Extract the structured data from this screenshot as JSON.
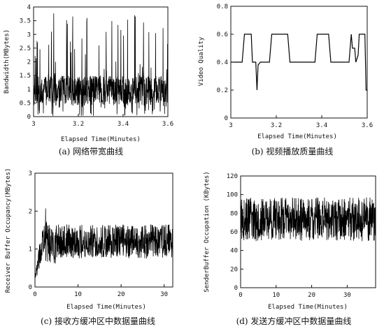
{
  "chart_data": [
    {
      "type": "line",
      "caption": "(a) 网络带宽曲线",
      "xlabel": "Elapsed Time(Minutes)",
      "ylabel": "Bandwidth(MBytes)",
      "xlim": [
        3.0,
        3.6
      ],
      "ylim": [
        0,
        4
      ],
      "xticks": [
        "3",
        "3.2",
        "3.4",
        "3.6"
      ],
      "yticks": [
        "0",
        "0.5",
        "1",
        "1.5",
        "2",
        "2.5",
        "3",
        "3.5",
        "4"
      ],
      "grid": false,
      "series": [
        {
          "color": "#000000",
          "band_low": 0.4,
          "band_high": 1.5,
          "peaks_to": 3.8,
          "trough_to": 0.0
        }
      ]
    },
    {
      "type": "line",
      "caption": "(b) 视频播放质量曲线",
      "xlabel": "Elapsed Time(Minutes)",
      "ylabel": "Video Quality",
      "xlim": [
        3.0,
        3.6
      ],
      "ylim": [
        0,
        0.8
      ],
      "xticks": [
        "3",
        "3.2",
        "3.4",
        "3.6"
      ],
      "yticks": [
        "0",
        "0.2",
        "0.4",
        "0.6",
        "0.8"
      ],
      "grid": false,
      "series": [
        {
          "color": "#000000",
          "points": [
            [
              3.0,
              0.4
            ],
            [
              3.05,
              0.4
            ],
            [
              3.06,
              0.6
            ],
            [
              3.09,
              0.6
            ],
            [
              3.095,
              0.4
            ],
            [
              3.11,
              0.4
            ],
            [
              3.115,
              0.2
            ],
            [
              3.12,
              0.38
            ],
            [
              3.13,
              0.4
            ],
            [
              3.17,
              0.4
            ],
            [
              3.18,
              0.6
            ],
            [
              3.25,
              0.6
            ],
            [
              3.26,
              0.4
            ],
            [
              3.37,
              0.4
            ],
            [
              3.38,
              0.6
            ],
            [
              3.43,
              0.6
            ],
            [
              3.44,
              0.4
            ],
            [
              3.52,
              0.4
            ],
            [
              3.53,
              0.6
            ],
            [
              3.535,
              0.5
            ],
            [
              3.545,
              0.5
            ],
            [
              3.55,
              0.4
            ],
            [
              3.56,
              0.45
            ],
            [
              3.565,
              0.6
            ],
            [
              3.59,
              0.6
            ],
            [
              3.595,
              0.2
            ],
            [
              3.6,
              0.2
            ]
          ]
        }
      ]
    },
    {
      "type": "line",
      "caption": "(c) 接收方缓冲区中数据量曲线",
      "xlabel": "Elapsed Time(Minutes)",
      "ylabel": "Receiver Buffer Occupancy(MBytes)",
      "xlim": [
        0,
        32
      ],
      "ylim": [
        0,
        3
      ],
      "xticks": [
        "0",
        "10",
        "20",
        "30"
      ],
      "yticks": [
        "0",
        "1",
        "2",
        "3"
      ],
      "grid": false,
      "series": [
        {
          "color": "#000000",
          "band_low": 0.75,
          "band_high": 1.65,
          "ramp_peak": 2.25,
          "ramp_peak_x": 2.5
        }
      ]
    },
    {
      "type": "line",
      "caption": "(d) 发送方缓冲区中数据量曲线",
      "xlabel": "Elapsed Time(Minutes)",
      "ylabel": "SenderBuffer Occupation (KBytes)",
      "xlim": [
        0,
        38
      ],
      "ylim": [
        0,
        120
      ],
      "xticks": [
        "0",
        "10",
        "20",
        "30"
      ],
      "yticks": [
        "0",
        "20",
        "40",
        "60",
        "80",
        "100",
        "120"
      ],
      "grid": false,
      "series": [
        {
          "color": "#000000",
          "band_low": 50,
          "band_high": 97
        }
      ]
    }
  ]
}
